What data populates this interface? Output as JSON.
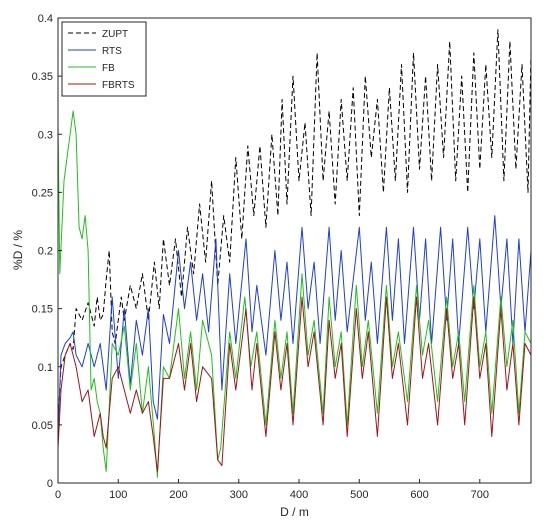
{
  "chart_data": {
    "type": "line",
    "title": "",
    "xlabel": "D / m",
    "ylabel": "%D / %",
    "xlim": [
      0,
      785
    ],
    "ylim": [
      0,
      0.4
    ],
    "xticks": [
      0,
      100,
      200,
      300,
      400,
      500,
      600,
      700
    ],
    "yticks": [
      0,
      0.05,
      0.1,
      0.15,
      0.2,
      0.25,
      0.3,
      0.35,
      0.4
    ],
    "xtick_labels": [
      "0",
      "100",
      "200",
      "300",
      "400",
      "500",
      "600",
      "700"
    ],
    "ytick_labels": [
      "0",
      "0.05",
      "0.1",
      "0.15",
      "0.2",
      "0.25",
      "0.3",
      "0.35",
      "0.4"
    ],
    "grid": false,
    "legend_position": "top-left",
    "series": [
      {
        "name": "ZUPT",
        "color": "#000000",
        "style": "dashed",
        "points": [
          [
            0,
            0.05
          ],
          [
            5,
            0.1
          ],
          [
            12,
            0.11
          ],
          [
            20,
            0.12
          ],
          [
            25,
            0.115
          ],
          [
            30,
            0.15
          ],
          [
            40,
            0.14
          ],
          [
            50,
            0.155
          ],
          [
            60,
            0.135
          ],
          [
            65,
            0.16
          ],
          [
            70,
            0.14
          ],
          [
            75,
            0.145
          ],
          [
            80,
            0.175
          ],
          [
            85,
            0.2
          ],
          [
            90,
            0.13
          ],
          [
            95,
            0.12
          ],
          [
            105,
            0.16
          ],
          [
            110,
            0.14
          ],
          [
            120,
            0.17
          ],
          [
            130,
            0.15
          ],
          [
            140,
            0.18
          ],
          [
            150,
            0.14
          ],
          [
            160,
            0.19
          ],
          [
            168,
            0.15
          ],
          [
            175,
            0.21
          ],
          [
            185,
            0.17
          ],
          [
            195,
            0.21
          ],
          [
            205,
            0.16
          ],
          [
            215,
            0.22
          ],
          [
            225,
            0.18
          ],
          [
            235,
            0.24
          ],
          [
            245,
            0.19
          ],
          [
            255,
            0.26
          ],
          [
            265,
            0.17
          ],
          [
            275,
            0.23
          ],
          [
            285,
            0.19
          ],
          [
            295,
            0.28
          ],
          [
            305,
            0.21
          ],
          [
            315,
            0.29
          ],
          [
            325,
            0.23
          ],
          [
            335,
            0.29
          ],
          [
            345,
            0.22
          ],
          [
            355,
            0.3
          ],
          [
            365,
            0.23
          ],
          [
            372,
            0.33
          ],
          [
            380,
            0.24
          ],
          [
            390,
            0.35
          ],
          [
            400,
            0.26
          ],
          [
            410,
            0.31
          ],
          [
            420,
            0.23
          ],
          [
            430,
            0.37
          ],
          [
            440,
            0.26
          ],
          [
            450,
            0.32
          ],
          [
            460,
            0.24
          ],
          [
            470,
            0.33
          ],
          [
            480,
            0.26
          ],
          [
            490,
            0.34
          ],
          [
            500,
            0.23
          ],
          [
            510,
            0.35
          ],
          [
            520,
            0.28
          ],
          [
            530,
            0.33
          ],
          [
            540,
            0.25
          ],
          [
            550,
            0.34
          ],
          [
            560,
            0.26
          ],
          [
            570,
            0.36
          ],
          [
            580,
            0.25
          ],
          [
            590,
            0.37
          ],
          [
            600,
            0.27
          ],
          [
            610,
            0.35
          ],
          [
            620,
            0.26
          ],
          [
            630,
            0.36
          ],
          [
            640,
            0.28
          ],
          [
            650,
            0.38
          ],
          [
            660,
            0.26
          ],
          [
            670,
            0.35
          ],
          [
            680,
            0.25
          ],
          [
            690,
            0.37
          ],
          [
            700,
            0.27
          ],
          [
            710,
            0.36
          ],
          [
            720,
            0.28
          ],
          [
            730,
            0.39
          ],
          [
            740,
            0.26
          ],
          [
            750,
            0.38
          ],
          [
            760,
            0.27
          ],
          [
            770,
            0.36
          ],
          [
            780,
            0.25
          ],
          [
            785,
            0.37
          ]
        ]
      },
      {
        "name": "RTS",
        "color": "#1f3fd6",
        "style": "solid",
        "points": [
          [
            0,
            0.04
          ],
          [
            5,
            0.11
          ],
          [
            12,
            0.12
          ],
          [
            20,
            0.125
          ],
          [
            25,
            0.13
          ],
          [
            30,
            0.11
          ],
          [
            40,
            0.1
          ],
          [
            50,
            0.12
          ],
          [
            60,
            0.1
          ],
          [
            70,
            0.12
          ],
          [
            80,
            0.08
          ],
          [
            90,
            0.16
          ],
          [
            100,
            0.09
          ],
          [
            110,
            0.15
          ],
          [
            120,
            0.085
          ],
          [
            130,
            0.14
          ],
          [
            140,
            0.11
          ],
          [
            150,
            0.15
          ],
          [
            158,
            0.07
          ],
          [
            165,
            0.055
          ],
          [
            175,
            0.145
          ],
          [
            185,
            0.12
          ],
          [
            200,
            0.2
          ],
          [
            210,
            0.15
          ],
          [
            220,
            0.19
          ],
          [
            230,
            0.14
          ],
          [
            240,
            0.18
          ],
          [
            250,
            0.13
          ],
          [
            262,
            0.21
          ],
          [
            272,
            0.08
          ],
          [
            285,
            0.18
          ],
          [
            295,
            0.12
          ],
          [
            312,
            0.21
          ],
          [
            322,
            0.13
          ],
          [
            330,
            0.17
          ],
          [
            345,
            0.11
          ],
          [
            360,
            0.2
          ],
          [
            370,
            0.14
          ],
          [
            380,
            0.19
          ],
          [
            390,
            0.12
          ],
          [
            405,
            0.22
          ],
          [
            415,
            0.15
          ],
          [
            425,
            0.19
          ],
          [
            435,
            0.12
          ],
          [
            450,
            0.22
          ],
          [
            460,
            0.14
          ],
          [
            470,
            0.2
          ],
          [
            480,
            0.13
          ],
          [
            500,
            0.22
          ],
          [
            510,
            0.14
          ],
          [
            520,
            0.19
          ],
          [
            530,
            0.12
          ],
          [
            545,
            0.22
          ],
          [
            555,
            0.14
          ],
          [
            565,
            0.21
          ],
          [
            575,
            0.12
          ],
          [
            590,
            0.22
          ],
          [
            600,
            0.14
          ],
          [
            610,
            0.21
          ],
          [
            620,
            0.12
          ],
          [
            635,
            0.22
          ],
          [
            645,
            0.14
          ],
          [
            655,
            0.21
          ],
          [
            665,
            0.12
          ],
          [
            680,
            0.22
          ],
          [
            690,
            0.15
          ],
          [
            700,
            0.21
          ],
          [
            710,
            0.13
          ],
          [
            725,
            0.23
          ],
          [
            735,
            0.15
          ],
          [
            745,
            0.21
          ],
          [
            755,
            0.12
          ],
          [
            765,
            0.21
          ],
          [
            775,
            0.13
          ],
          [
            785,
            0.2
          ]
        ]
      },
      {
        "name": "FB",
        "color": "#22c01a",
        "style": "solid",
        "points": [
          [
            0,
            0.31
          ],
          [
            3,
            0.18
          ],
          [
            10,
            0.26
          ],
          [
            20,
            0.3
          ],
          [
            25,
            0.32
          ],
          [
            30,
            0.3
          ],
          [
            35,
            0.22
          ],
          [
            40,
            0.21
          ],
          [
            45,
            0.23
          ],
          [
            50,
            0.2
          ],
          [
            55,
            0.08
          ],
          [
            60,
            0.09
          ],
          [
            65,
            0.07
          ],
          [
            70,
            0.06
          ],
          [
            75,
            0.03
          ],
          [
            80,
            0.01
          ],
          [
            90,
            0.12
          ],
          [
            100,
            0.11
          ],
          [
            110,
            0.135
          ],
          [
            120,
            0.08
          ],
          [
            130,
            0.12
          ],
          [
            140,
            0.06
          ],
          [
            150,
            0.1
          ],
          [
            160,
            0.04
          ],
          [
            165,
            0.005
          ],
          [
            175,
            0.1
          ],
          [
            185,
            0.09
          ],
          [
            200,
            0.15
          ],
          [
            210,
            0.09
          ],
          [
            220,
            0.13
          ],
          [
            230,
            0.08
          ],
          [
            240,
            0.14
          ],
          [
            255,
            0.11
          ],
          [
            265,
            0.02
          ],
          [
            270,
            0.03
          ],
          [
            285,
            0.13
          ],
          [
            295,
            0.09
          ],
          [
            310,
            0.16
          ],
          [
            320,
            0.1
          ],
          [
            330,
            0.13
          ],
          [
            345,
            0.05
          ],
          [
            360,
            0.14
          ],
          [
            370,
            0.09
          ],
          [
            380,
            0.13
          ],
          [
            390,
            0.06
          ],
          [
            405,
            0.18
          ],
          [
            415,
            0.11
          ],
          [
            425,
            0.14
          ],
          [
            440,
            0.06
          ],
          [
            450,
            0.16
          ],
          [
            460,
            0.1
          ],
          [
            470,
            0.13
          ],
          [
            480,
            0.05
          ],
          [
            495,
            0.17
          ],
          [
            505,
            0.1
          ],
          [
            515,
            0.14
          ],
          [
            530,
            0.06
          ],
          [
            545,
            0.17
          ],
          [
            555,
            0.1
          ],
          [
            565,
            0.13
          ],
          [
            580,
            0.07
          ],
          [
            595,
            0.17
          ],
          [
            605,
            0.11
          ],
          [
            615,
            0.14
          ],
          [
            630,
            0.07
          ],
          [
            645,
            0.16
          ],
          [
            655,
            0.1
          ],
          [
            665,
            0.13
          ],
          [
            675,
            0.07
          ],
          [
            690,
            0.17
          ],
          [
            700,
            0.1
          ],
          [
            710,
            0.13
          ],
          [
            720,
            0.06
          ],
          [
            735,
            0.16
          ],
          [
            745,
            0.1
          ],
          [
            755,
            0.14
          ],
          [
            765,
            0.06
          ],
          [
            775,
            0.13
          ],
          [
            785,
            0.12
          ]
        ]
      },
      {
        "name": "FBRTS",
        "color": "#a0141a",
        "style": "solid",
        "points": [
          [
            0,
            0.03
          ],
          [
            5,
            0.08
          ],
          [
            12,
            0.11
          ],
          [
            20,
            0.12
          ],
          [
            25,
            0.11
          ],
          [
            30,
            0.1
          ],
          [
            40,
            0.07
          ],
          [
            50,
            0.08
          ],
          [
            60,
            0.04
          ],
          [
            70,
            0.06
          ],
          [
            75,
            0.04
          ],
          [
            80,
            0.03
          ],
          [
            90,
            0.09
          ],
          [
            100,
            0.1
          ],
          [
            110,
            0.08
          ],
          [
            120,
            0.06
          ],
          [
            130,
            0.08
          ],
          [
            140,
            0.06
          ],
          [
            150,
            0.07
          ],
          [
            158,
            0.04
          ],
          [
            165,
            0.01
          ],
          [
            175,
            0.09
          ],
          [
            185,
            0.09
          ],
          [
            200,
            0.12
          ],
          [
            210,
            0.08
          ],
          [
            220,
            0.12
          ],
          [
            230,
            0.07
          ],
          [
            240,
            0.1
          ],
          [
            255,
            0.09
          ],
          [
            265,
            0.02
          ],
          [
            272,
            0.015
          ],
          [
            285,
            0.12
          ],
          [
            295,
            0.08
          ],
          [
            312,
            0.15
          ],
          [
            322,
            0.08
          ],
          [
            330,
            0.12
          ],
          [
            345,
            0.04
          ],
          [
            360,
            0.13
          ],
          [
            370,
            0.08
          ],
          [
            380,
            0.12
          ],
          [
            390,
            0.05
          ],
          [
            405,
            0.16
          ],
          [
            415,
            0.1
          ],
          [
            425,
            0.13
          ],
          [
            440,
            0.05
          ],
          [
            450,
            0.14
          ],
          [
            460,
            0.09
          ],
          [
            470,
            0.12
          ],
          [
            480,
            0.04
          ],
          [
            495,
            0.15
          ],
          [
            505,
            0.09
          ],
          [
            515,
            0.13
          ],
          [
            530,
            0.04
          ],
          [
            545,
            0.16
          ],
          [
            555,
            0.09
          ],
          [
            565,
            0.12
          ],
          [
            580,
            0.05
          ],
          [
            595,
            0.16
          ],
          [
            605,
            0.09
          ],
          [
            615,
            0.12
          ],
          [
            630,
            0.05
          ],
          [
            645,
            0.15
          ],
          [
            655,
            0.09
          ],
          [
            665,
            0.12
          ],
          [
            675,
            0.05
          ],
          [
            690,
            0.16
          ],
          [
            700,
            0.09
          ],
          [
            710,
            0.12
          ],
          [
            720,
            0.04
          ],
          [
            735,
            0.15
          ],
          [
            745,
            0.08
          ],
          [
            755,
            0.12
          ],
          [
            765,
            0.05
          ],
          [
            775,
            0.12
          ],
          [
            785,
            0.11
          ]
        ]
      }
    ]
  }
}
